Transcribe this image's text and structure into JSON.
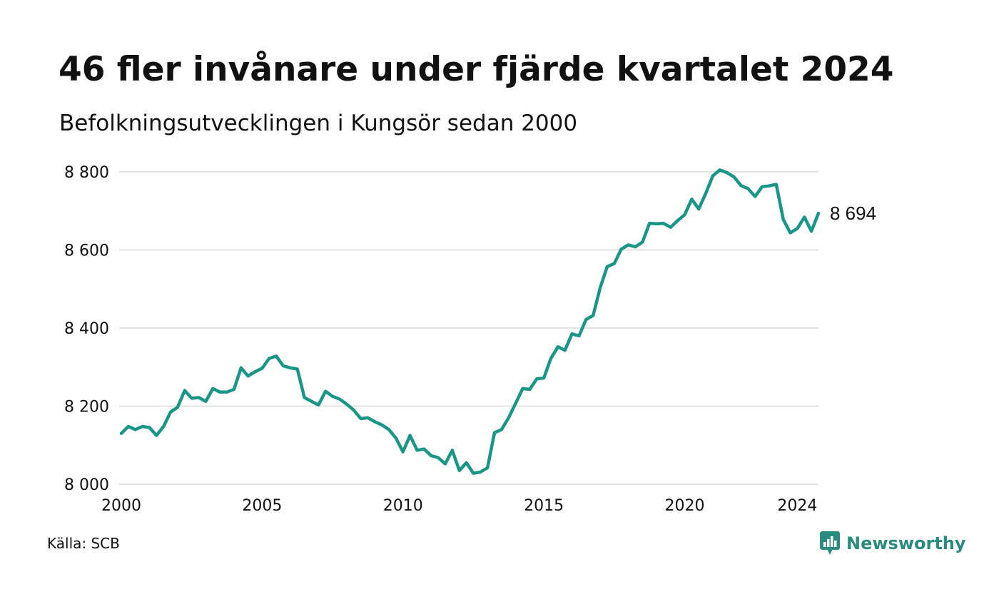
{
  "title": "46 fler invånare under fjärde kvartalet 2024",
  "subtitle": "Befolkningsutvecklingen i Kungsör sedan 2000",
  "source": "Källa: SCB",
  "brand": {
    "name": "Newsworthy",
    "color": "#2a8c7e"
  },
  "colors": {
    "line": "#1a9688",
    "grid": "#e3e3e3"
  },
  "end_label": "8 694",
  "chart_data": {
    "type": "line",
    "title": "46 fler invånare under fjärde kvartalet 2024",
    "subtitle": "Befolkningsutvecklingen i Kungsör sedan 2000",
    "xlabel": "",
    "ylabel": "",
    "ylim": [
      8000,
      8800
    ],
    "xlim": [
      2000,
      2024.75
    ],
    "grid": "horizontal",
    "legend": "none",
    "y_ticks": [
      8000,
      8200,
      8400,
      8600,
      8800
    ],
    "y_tick_labels": [
      "8 000",
      "8 200",
      "8 400",
      "8 600",
      "8 800"
    ],
    "x_ticks": [
      2000,
      2005,
      2010,
      2015,
      2020,
      2024
    ],
    "x_tick_labels": [
      "2000",
      "2005",
      "2010",
      "2015",
      "2020",
      "2024"
    ],
    "series": [
      {
        "x": [
          2000.0,
          2000.25,
          2000.5,
          2000.75,
          2001.0,
          2001.25,
          2001.5,
          2001.75,
          2002.0,
          2002.25,
          2002.5,
          2002.75,
          2003.0,
          2003.25,
          2003.5,
          2003.75,
          2004.0,
          2004.25,
          2004.5,
          2004.75,
          2005.0,
          2005.25,
          2005.5,
          2005.75,
          2006.0,
          2006.25,
          2006.5,
          2006.75,
          2007.0,
          2007.25,
          2007.5,
          2007.75,
          2008.0,
          2008.25,
          2008.5,
          2008.75,
          2009.0,
          2009.25,
          2009.5,
          2009.75,
          2010.0,
          2010.25,
          2010.5,
          2010.75,
          2011.0,
          2011.25,
          2011.5,
          2011.75,
          2012.0,
          2012.25,
          2012.5,
          2012.75,
          2013.0,
          2013.25,
          2013.5,
          2013.75,
          2014.0,
          2014.25,
          2014.5,
          2014.75,
          2015.0,
          2015.25,
          2015.5,
          2015.75,
          2016.0,
          2016.25,
          2016.5,
          2016.75,
          2017.0,
          2017.25,
          2017.5,
          2017.75,
          2018.0,
          2018.25,
          2018.5,
          2018.75,
          2019.0,
          2019.25,
          2019.5,
          2019.75,
          2020.0,
          2020.25,
          2020.5,
          2020.75,
          2021.0,
          2021.25,
          2021.5,
          2021.75,
          2022.0,
          2022.25,
          2022.5,
          2022.75,
          2023.0,
          2023.25,
          2023.5,
          2023.75,
          2024.0,
          2024.25,
          2024.5,
          2024.75
        ],
        "values": [
          8130,
          8148,
          8140,
          8148,
          8145,
          8125,
          8148,
          8185,
          8197,
          8240,
          8220,
          8222,
          8212,
          8245,
          8236,
          8236,
          8243,
          8298,
          8277,
          8288,
          8297,
          8322,
          8328,
          8303,
          8298,
          8295,
          8222,
          8212,
          8203,
          8238,
          8225,
          8218,
          8205,
          8190,
          8168,
          8170,
          8160,
          8152,
          8140,
          8118,
          8083,
          8125,
          8087,
          8090,
          8073,
          8068,
          8052,
          8087,
          8035,
          8055,
          8028,
          8031,
          8042,
          8132,
          8140,
          8170,
          8207,
          8245,
          8243,
          8270,
          8272,
          8322,
          8352,
          8343,
          8385,
          8380,
          8422,
          8432,
          8503,
          8557,
          8565,
          8602,
          8613,
          8608,
          8620,
          8668,
          8667,
          8668,
          8658,
          8675,
          8690,
          8730,
          8705,
          8745,
          8790,
          8805,
          8798,
          8787,
          8765,
          8757,
          8737,
          8762,
          8764,
          8768,
          8678,
          8644,
          8655,
          8684,
          8648,
          8694
        ]
      }
    ]
  }
}
